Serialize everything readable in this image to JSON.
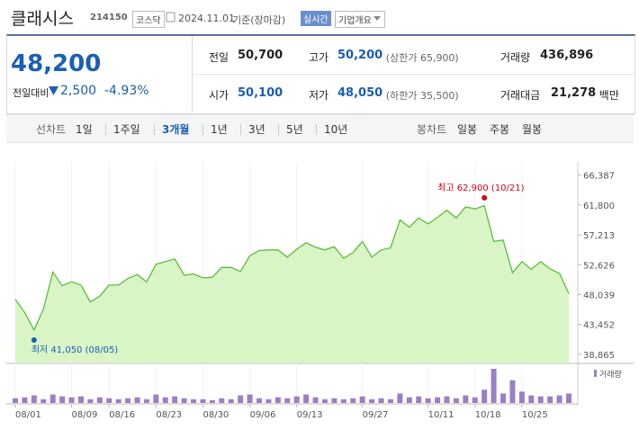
{
  "header": {
    "name": "클래시스",
    "code": "214150",
    "market": "코스닥",
    "date": "2024.11.01",
    "basis": "기준(장마감)",
    "realtime": "실시간",
    "company_info": "기업개요"
  },
  "quote": {
    "price": "48,200",
    "change_label": "전일대비",
    "change": "2,500",
    "change_pct": "-4.93%"
  },
  "stats": [
    [
      {
        "label": "전일",
        "value": "50,700"
      },
      {
        "label": "고가",
        "value": "50,200",
        "note": "(상한가 65,900)"
      },
      {
        "label": "거래량",
        "value": "436,896"
      }
    ],
    [
      {
        "label": "시가",
        "value": "50,100"
      },
      {
        "label": "저가",
        "value": "48,050",
        "note": "(하한가 35,500)"
      },
      {
        "label": "거래대금",
        "value": "21,278",
        "unit": "백만"
      }
    ]
  ],
  "tabs": {
    "line_label": "선차트",
    "line": [
      "1일",
      "1주일",
      "3개월",
      "1년",
      "3년",
      "5년",
      "10년"
    ],
    "selected": "3개월",
    "candle_label": "봉차트",
    "candle": [
      "일봉",
      "주봉",
      "월봉"
    ]
  },
  "chart_data": {
    "type": "line",
    "x": [
      "08/01",
      "08/02",
      "08/05",
      "08/06",
      "08/07",
      "08/08",
      "08/09",
      "08/12",
      "08/13",
      "08/14",
      "08/16",
      "08/19",
      "08/20",
      "08/21",
      "08/22",
      "08/23",
      "08/26",
      "08/27",
      "08/28",
      "08/29",
      "08/30",
      "09/02",
      "09/03",
      "09/04",
      "09/05",
      "09/06",
      "09/09",
      "09/10",
      "09/11",
      "09/12",
      "09/13",
      "09/19",
      "09/20",
      "09/23",
      "09/24",
      "09/25",
      "09/26",
      "09/27",
      "09/30",
      "10/02",
      "10/04",
      "10/07",
      "10/08",
      "10/10",
      "10/11",
      "10/14",
      "10/15",
      "10/16",
      "10/17",
      "10/18",
      "10/21",
      "10/22",
      "10/23",
      "10/24",
      "10/25",
      "10/28",
      "10/29",
      "10/30",
      "10/31",
      "11/01"
    ],
    "values": [
      47300,
      45300,
      42600,
      45800,
      51500,
      49400,
      50000,
      49500,
      46900,
      47800,
      49500,
      49500,
      50500,
      51100,
      50000,
      52700,
      53100,
      53500,
      51000,
      51200,
      50600,
      50700,
      52200,
      52200,
      51600,
      54000,
      54800,
      54900,
      54900,
      53800,
      55000,
      56000,
      55300,
      54900,
      55400,
      53600,
      54500,
      56200,
      53800,
      54900,
      55200,
      59500,
      58400,
      59800,
      58900,
      59900,
      61000,
      59800,
      61500,
      61200,
      61700,
      56200,
      56400,
      51400,
      53100,
      51900,
      53100,
      52000,
      51300,
      48200
    ],
    "color": "#5cbf3a",
    "fill": "#d9f5c6",
    "ylim": [
      37600,
      68000
    ],
    "yticks": [
      {
        "value": 38865,
        "label": "38,865"
      },
      {
        "value": 43452,
        "label": "43,452"
      },
      {
        "value": 48039,
        "label": "48,039"
      },
      {
        "value": 52626,
        "label": "52,626"
      },
      {
        "value": 57213,
        "label": "57,213"
      },
      {
        "value": 61800,
        "label": "61,800"
      },
      {
        "value": 66387,
        "label": "66,387"
      }
    ],
    "xticks": [
      "08/01",
      "08/09",
      "08/16",
      "08/23",
      "08/30",
      "09/06",
      "09/13",
      "09/27",
      "10/11",
      "10/18",
      "10/25"
    ],
    "annotations": [
      {
        "text": "최고 62,900 (10/21)",
        "value": 62900,
        "x": "10/21",
        "color": "#d0021b"
      },
      {
        "text": "최저 41,050 (08/05)",
        "value": 41050,
        "x": "08/05",
        "color": "#1a5fb4"
      }
    ],
    "volume": {
      "name": "거래량",
      "color": "#9a7fc6",
      "values": [
        218000,
        262000,
        350000,
        175000,
        393000,
        306000,
        262000,
        306000,
        175000,
        262000,
        218000,
        175000,
        218000,
        262000,
        175000,
        393000,
        262000,
        306000,
        218000,
        175000,
        175000,
        131000,
        218000,
        175000,
        350000,
        393000,
        218000,
        175000,
        262000,
        218000,
        306000,
        393000,
        262000,
        175000,
        218000,
        175000,
        218000,
        306000,
        175000,
        218000,
        175000,
        437000,
        262000,
        306000,
        218000,
        262000,
        306000,
        218000,
        350000,
        262000,
        612000,
        1573000,
        437000,
        1049000,
        524000,
        350000,
        306000,
        306000,
        350000,
        436896
      ]
    }
  }
}
